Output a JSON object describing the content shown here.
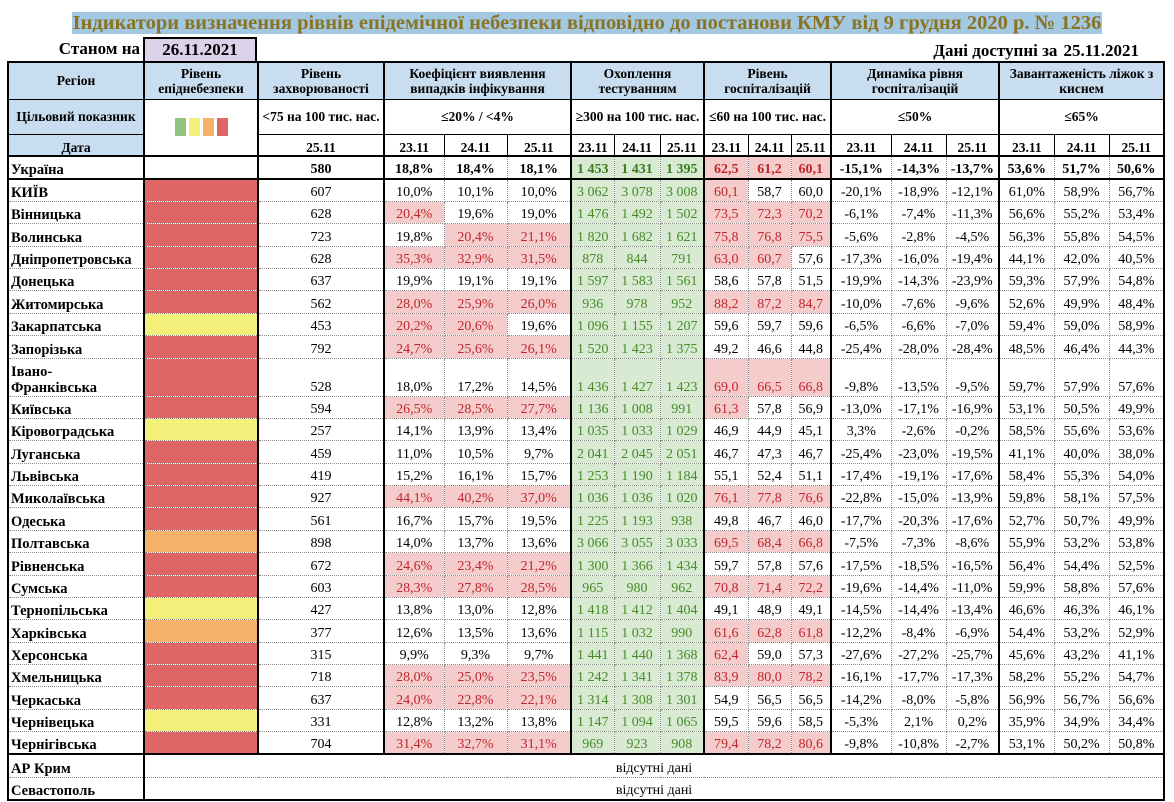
{
  "title": "Індикатори визначення рівнів епідемічної небезпеки відповідно до постанови КМУ від 9 грудня 2020 р. № 1236",
  "as_of": {
    "label": "Станом на",
    "date": "26.11.2021"
  },
  "data_available": {
    "label": "Дані доступні за",
    "date": "25.11.2021"
  },
  "colors": {
    "title_bg": "#a2c8e2",
    "title_text": "#8a7323",
    "header_bg": "#c9ddf0",
    "as_of_bg": "#dcd3ea",
    "level_green": "#93c47d",
    "level_yellow": "#f3ef7b",
    "level_orange": "#f6b26b",
    "level_red": "#e06666",
    "alert_bg": "#f4cccc",
    "alert_text": "#c0272d",
    "ok_bg": "#d9ead3",
    "ok_text": "#478a2a",
    "ok_text_bold": "#3b7a1f"
  },
  "table": {
    "headers": {
      "region": "Регіон",
      "epi_level": "Рівень епіднебезпеки",
      "incidence": "Рівень захворюваності",
      "positivity": "Коефіцієнт виявлення випадків інфікування",
      "testing": "Охоплення тестуванням",
      "hospitalization": "Рівень госпіталізацій",
      "hosp_dynamics": "Динаміка рівня госпіталізацій",
      "oxygen_beds": "Завантаженість ліжок з киснем"
    },
    "target_row": {
      "label": "Цільовий показник",
      "legend": [
        "green",
        "yellow",
        "orange",
        "red"
      ],
      "incidence": "<75 на 100 тис. нас.",
      "positivity": "≤20% / <4%",
      "testing": "≥300 на 100 тис. нас.",
      "hospitalization": "≤60 на 100 тис. нас.",
      "hosp_dynamics": "≤50%",
      "oxygen_beds": "≤65%"
    },
    "date_row": {
      "label": "Дата",
      "incidence_date": "25.11",
      "dates": [
        "23.11",
        "24.11",
        "25.11"
      ]
    },
    "national": {
      "region": "Україна",
      "incidence": "580",
      "koef": [
        "18,8%",
        "18,4%",
        "18,1%"
      ],
      "testing": [
        "1 453",
        "1 431",
        "1 395"
      ],
      "hosp": [
        "62,5",
        "61,2",
        "60,1"
      ],
      "dyn": [
        "-15,1%",
        "-14,3%",
        "-13,7%"
      ],
      "beds": [
        "53,6%",
        "51,7%",
        "50,6%"
      ]
    },
    "regions": [
      {
        "region": "КИЇВ",
        "level": "red",
        "incidence": "607",
        "koef": [
          "10,0%",
          "10,1%",
          "10,0%"
        ],
        "testing": [
          "3 062",
          "3 078",
          "3 008"
        ],
        "hosp": [
          "60,1",
          "58,7",
          "60,0"
        ],
        "dyn": [
          "-20,1%",
          "-18,9%",
          "-12,1%"
        ],
        "beds": [
          "61,0%",
          "58,9%",
          "56,7%"
        ]
      },
      {
        "region": "Вінницька",
        "level": "red",
        "incidence": "628",
        "koef": [
          "20,4%",
          "19,6%",
          "19,0%"
        ],
        "testing": [
          "1 476",
          "1 492",
          "1 502"
        ],
        "hosp": [
          "73,5",
          "72,3",
          "70,2"
        ],
        "dyn": [
          "-6,1%",
          "-7,4%",
          "-11,3%"
        ],
        "beds": [
          "56,6%",
          "55,2%",
          "53,4%"
        ]
      },
      {
        "region": "Волинська",
        "level": "red",
        "incidence": "723",
        "koef": [
          "19,8%",
          "20,4%",
          "21,1%"
        ],
        "testing": [
          "1 820",
          "1 682",
          "1 621"
        ],
        "hosp": [
          "75,8",
          "76,8",
          "75,5"
        ],
        "dyn": [
          "-5,6%",
          "-2,8%",
          "-4,5%"
        ],
        "beds": [
          "56,3%",
          "55,8%",
          "54,5%"
        ]
      },
      {
        "region": "Дніпропетровська",
        "level": "red",
        "incidence": "628",
        "koef": [
          "35,3%",
          "32,9%",
          "31,5%"
        ],
        "testing": [
          "878",
          "844",
          "791"
        ],
        "hosp": [
          "63,0",
          "60,7",
          "57,6"
        ],
        "dyn": [
          "-17,3%",
          "-16,0%",
          "-19,4%"
        ],
        "beds": [
          "44,1%",
          "42,0%",
          "40,5%"
        ]
      },
      {
        "region": "Донецька",
        "level": "red",
        "incidence": "637",
        "koef": [
          "19,9%",
          "19,1%",
          "19,1%"
        ],
        "testing": [
          "1 597",
          "1 583",
          "1 561"
        ],
        "hosp": [
          "58,6",
          "57,8",
          "51,5"
        ],
        "dyn": [
          "-19,9%",
          "-14,3%",
          "-23,9%"
        ],
        "beds": [
          "59,3%",
          "57,9%",
          "54,8%"
        ]
      },
      {
        "region": "Житомирська",
        "level": "red",
        "incidence": "562",
        "koef": [
          "28,0%",
          "25,9%",
          "26,0%"
        ],
        "testing": [
          "936",
          "978",
          "952"
        ],
        "hosp": [
          "88,2",
          "87,2",
          "84,7"
        ],
        "dyn": [
          "-10,0%",
          "-7,6%",
          "-9,6%"
        ],
        "beds": [
          "52,6%",
          "49,9%",
          "48,4%"
        ]
      },
      {
        "region": "Закарпатська",
        "level": "yellow",
        "incidence": "453",
        "koef": [
          "20,2%",
          "20,6%",
          "19,6%"
        ],
        "testing": [
          "1 096",
          "1 155",
          "1 207"
        ],
        "hosp": [
          "59,6",
          "59,7",
          "59,6"
        ],
        "dyn": [
          "-6,5%",
          "-6,6%",
          "-7,0%"
        ],
        "beds": [
          "59,4%",
          "59,0%",
          "58,9%"
        ]
      },
      {
        "region": "Запорізька",
        "level": "red",
        "incidence": "792",
        "koef": [
          "24,7%",
          "25,6%",
          "26,1%"
        ],
        "testing": [
          "1 520",
          "1 423",
          "1 375"
        ],
        "hosp": [
          "49,2",
          "46,6",
          "44,8"
        ],
        "dyn": [
          "-25,4%",
          "-28,0%",
          "-28,4%"
        ],
        "beds": [
          "48,5%",
          "46,4%",
          "44,3%"
        ]
      },
      {
        "region": "Івано-Франківська",
        "level": "red",
        "incidence": "528",
        "koef": [
          "18,0%",
          "17,2%",
          "14,5%"
        ],
        "testing": [
          "1 436",
          "1 427",
          "1 423"
        ],
        "hosp": [
          "69,0",
          "66,5",
          "66,8"
        ],
        "dyn": [
          "-9,8%",
          "-13,5%",
          "-9,5%"
        ],
        "beds": [
          "59,7%",
          "57,9%",
          "57,6%"
        ]
      },
      {
        "region": "Київська",
        "level": "red",
        "incidence": "594",
        "koef": [
          "26,5%",
          "28,5%",
          "27,7%"
        ],
        "testing": [
          "1 136",
          "1 008",
          "991"
        ],
        "hosp": [
          "61,3",
          "57,8",
          "56,9"
        ],
        "dyn": [
          "-13,0%",
          "-17,1%",
          "-16,9%"
        ],
        "beds": [
          "53,1%",
          "50,5%",
          "49,9%"
        ]
      },
      {
        "region": "Кіровоградська",
        "level": "yellow",
        "incidence": "257",
        "koef": [
          "14,1%",
          "13,9%",
          "13,4%"
        ],
        "testing": [
          "1 035",
          "1 033",
          "1 029"
        ],
        "hosp": [
          "46,9",
          "44,9",
          "45,1"
        ],
        "dyn": [
          "3,3%",
          "-2,6%",
          "-0,2%"
        ],
        "beds": [
          "58,5%",
          "55,6%",
          "53,6%"
        ]
      },
      {
        "region": "Луганська",
        "level": "red",
        "incidence": "459",
        "koef": [
          "11,0%",
          "10,5%",
          "9,7%"
        ],
        "testing": [
          "2 041",
          "2 045",
          "2 051"
        ],
        "hosp": [
          "46,7",
          "47,3",
          "46,7"
        ],
        "dyn": [
          "-25,4%",
          "-23,0%",
          "-19,5%"
        ],
        "beds": [
          "41,1%",
          "40,0%",
          "38,0%"
        ]
      },
      {
        "region": "Львівська",
        "level": "red",
        "incidence": "419",
        "koef": [
          "15,2%",
          "16,1%",
          "15,7%"
        ],
        "testing": [
          "1 253",
          "1 190",
          "1 184"
        ],
        "hosp": [
          "55,1",
          "52,4",
          "51,1"
        ],
        "dyn": [
          "-17,4%",
          "-19,1%",
          "-17,6%"
        ],
        "beds": [
          "58,4%",
          "55,3%",
          "54,0%"
        ]
      },
      {
        "region": "Миколаївська",
        "level": "red",
        "incidence": "927",
        "koef": [
          "44,1%",
          "40,2%",
          "37,0%"
        ],
        "testing": [
          "1 036",
          "1 036",
          "1 020"
        ],
        "hosp": [
          "76,1",
          "77,8",
          "76,6"
        ],
        "dyn": [
          "-22,8%",
          "-15,0%",
          "-13,9%"
        ],
        "beds": [
          "59,8%",
          "58,1%",
          "57,5%"
        ]
      },
      {
        "region": "Одеська",
        "level": "red",
        "incidence": "561",
        "koef": [
          "16,7%",
          "15,7%",
          "19,5%"
        ],
        "testing": [
          "1 225",
          "1 193",
          "938"
        ],
        "hosp": [
          "49,8",
          "46,7",
          "46,0"
        ],
        "dyn": [
          "-17,7%",
          "-20,3%",
          "-17,6%"
        ],
        "beds": [
          "52,7%",
          "50,7%",
          "49,9%"
        ]
      },
      {
        "region": "Полтавська",
        "level": "orange",
        "incidence": "898",
        "koef": [
          "14,0%",
          "13,7%",
          "13,6%"
        ],
        "testing": [
          "3 066",
          "3 055",
          "3 033"
        ],
        "hosp": [
          "69,5",
          "68,4",
          "66,8"
        ],
        "dyn": [
          "-7,5%",
          "-7,3%",
          "-8,6%"
        ],
        "beds": [
          "55,9%",
          "53,2%",
          "53,8%"
        ]
      },
      {
        "region": "Рівненська",
        "level": "red",
        "incidence": "672",
        "koef": [
          "24,6%",
          "23,4%",
          "21,2%"
        ],
        "testing": [
          "1 300",
          "1 366",
          "1 434"
        ],
        "hosp": [
          "59,7",
          "57,8",
          "57,6"
        ],
        "dyn": [
          "-17,5%",
          "-18,5%",
          "-16,5%"
        ],
        "beds": [
          "56,4%",
          "54,4%",
          "52,5%"
        ]
      },
      {
        "region": "Сумська",
        "level": "red",
        "incidence": "603",
        "koef": [
          "28,3%",
          "27,8%",
          "28,5%"
        ],
        "testing": [
          "965",
          "980",
          "962"
        ],
        "hosp": [
          "70,8",
          "71,4",
          "72,2"
        ],
        "dyn": [
          "-19,6%",
          "-14,4%",
          "-11,0%"
        ],
        "beds": [
          "59,9%",
          "58,8%",
          "57,6%"
        ]
      },
      {
        "region": "Тернопільська",
        "level": "yellow",
        "incidence": "427",
        "koef": [
          "13,8%",
          "13,0%",
          "12,8%"
        ],
        "testing": [
          "1 418",
          "1 412",
          "1 404"
        ],
        "hosp": [
          "49,1",
          "48,9",
          "49,1"
        ],
        "dyn": [
          "-14,5%",
          "-14,4%",
          "-13,4%"
        ],
        "beds": [
          "46,6%",
          "46,3%",
          "46,1%"
        ]
      },
      {
        "region": "Харківська",
        "level": "orange",
        "incidence": "377",
        "koef": [
          "12,6%",
          "13,5%",
          "13,6%"
        ],
        "testing": [
          "1 115",
          "1 032",
          "990"
        ],
        "hosp": [
          "61,6",
          "62,8",
          "61,8"
        ],
        "dyn": [
          "-12,2%",
          "-8,4%",
          "-6,9%"
        ],
        "beds": [
          "54,4%",
          "53,2%",
          "52,9%"
        ]
      },
      {
        "region": "Херсонська",
        "level": "red",
        "incidence": "315",
        "koef": [
          "9,9%",
          "9,3%",
          "9,7%"
        ],
        "testing": [
          "1 441",
          "1 440",
          "1 368"
        ],
        "hosp": [
          "62,4",
          "59,0",
          "57,3"
        ],
        "dyn": [
          "-27,6%",
          "-27,2%",
          "-25,7%"
        ],
        "beds": [
          "45,6%",
          "43,2%",
          "41,1%"
        ]
      },
      {
        "region": "Хмельницька",
        "level": "red",
        "incidence": "718",
        "koef": [
          "28,0%",
          "25,0%",
          "23,5%"
        ],
        "testing": [
          "1 242",
          "1 341",
          "1 378"
        ],
        "hosp": [
          "83,9",
          "80,0",
          "78,2"
        ],
        "dyn": [
          "-16,1%",
          "-17,7%",
          "-17,3%"
        ],
        "beds": [
          "58,2%",
          "55,2%",
          "54,7%"
        ]
      },
      {
        "region": "Черкаська",
        "level": "red",
        "incidence": "637",
        "koef": [
          "24,0%",
          "22,8%",
          "22,1%"
        ],
        "testing": [
          "1 314",
          "1 308",
          "1 301"
        ],
        "hosp": [
          "54,9",
          "56,5",
          "56,5"
        ],
        "dyn": [
          "-14,2%",
          "-8,0%",
          "-5,8%"
        ],
        "beds": [
          "56,9%",
          "56,7%",
          "56,6%"
        ]
      },
      {
        "region": "Чернівецька",
        "level": "yellow",
        "incidence": "331",
        "koef": [
          "12,8%",
          "13,2%",
          "13,8%"
        ],
        "testing": [
          "1 147",
          "1 094",
          "1 065"
        ],
        "hosp": [
          "59,5",
          "59,6",
          "58,5"
        ],
        "dyn": [
          "-5,3%",
          "2,1%",
          "0,2%"
        ],
        "beds": [
          "35,9%",
          "34,9%",
          "34,4%"
        ]
      },
      {
        "region": "Чернігівська",
        "level": "red",
        "incidence": "704",
        "koef": [
          "31,4%",
          "32,7%",
          "31,1%"
        ],
        "testing": [
          "969",
          "923",
          "908"
        ],
        "hosp": [
          "79,4",
          "78,2",
          "80,6"
        ],
        "dyn": [
          "-9,8%",
          "-10,8%",
          "-2,7%"
        ],
        "beds": [
          "53,1%",
          "50,2%",
          "50,8%"
        ]
      }
    ],
    "no_data_rows": [
      {
        "region": "АР Крим",
        "note": "відсутні дані"
      },
      {
        "region": "Севастополь",
        "note": "відсутні дані"
      }
    ]
  }
}
